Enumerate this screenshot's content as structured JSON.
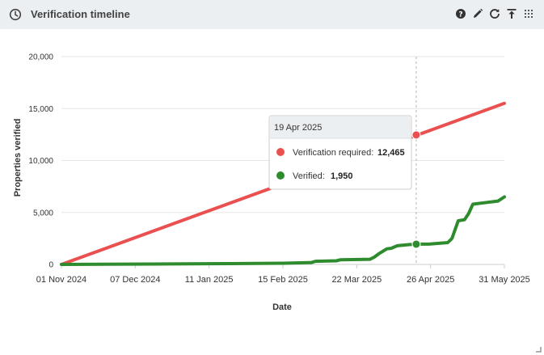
{
  "header": {
    "title": "Verification timeline"
  },
  "icons": [
    "clock-icon",
    "help-icon",
    "edit-icon",
    "refresh-icon",
    "export-icon",
    "drag-handle-icon"
  ],
  "colors": {
    "required": "#e9504f",
    "verified": "#2e8b2e",
    "header_bg": "#eceff1"
  },
  "tooltip": {
    "date": "19 Apr 2025",
    "rows": [
      {
        "label": "Verification required:",
        "value": "12,465"
      },
      {
        "label": "Verified:",
        "value": "1,950"
      }
    ]
  },
  "chart_data": {
    "type": "line",
    "xlabel": "Date",
    "ylabel": "Properties verified",
    "x_ticks": [
      "01 Nov 2024",
      "07 Dec 2024",
      "11 Jan 2025",
      "15 Feb 2025",
      "22 Mar 2025",
      "26 Apr 2025",
      "31 May 2025"
    ],
    "y_ticks": [
      "0",
      "5,000",
      "10,000",
      "15,000",
      "20,000"
    ],
    "ylim": [
      0,
      20000
    ],
    "xlim": [
      "2024-11-01",
      "2025-05-31"
    ],
    "grid": true,
    "series": [
      {
        "name": "Verification required",
        "color": "#e9504f",
        "x": [
          "2024-11-01",
          "2025-05-31"
        ],
        "values": [
          0,
          15500
        ]
      },
      {
        "name": "Verified",
        "color": "#2e8b2e",
        "x": [
          "2024-11-01",
          "2024-12-15",
          "2025-01-20",
          "2025-02-15",
          "2025-02-28",
          "2025-03-02",
          "2025-03-12",
          "2025-03-14",
          "2025-03-28",
          "2025-03-30",
          "2025-04-01",
          "2025-04-05",
          "2025-04-07",
          "2025-04-10",
          "2025-04-15",
          "2025-04-19",
          "2025-04-25",
          "2025-04-28",
          "2025-05-04",
          "2025-05-06",
          "2025-05-09",
          "2025-05-12",
          "2025-05-14",
          "2025-05-16",
          "2025-05-20",
          "2025-05-28",
          "2025-05-31"
        ],
        "values": [
          0,
          40,
          80,
          120,
          180,
          300,
          350,
          450,
          500,
          700,
          1000,
          1500,
          1550,
          1800,
          1900,
          1950,
          1950,
          2000,
          2100,
          2500,
          4200,
          4300,
          4900,
          5800,
          5900,
          6100,
          6500
        ]
      }
    ],
    "highlight": {
      "x": "2025-04-19",
      "required": 12465,
      "verified": 1950
    }
  }
}
